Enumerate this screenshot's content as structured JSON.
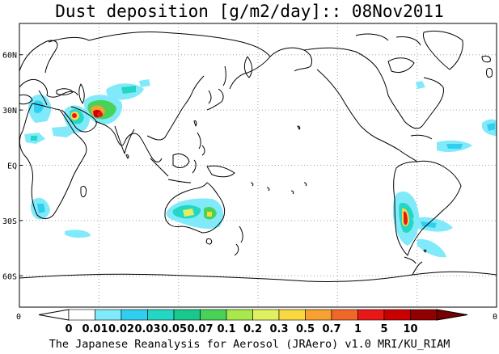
{
  "title": "Dust deposition [g/m2/day]:: 08Nov2011",
  "footer": "The Japanese Reanalysis for Aerosol (JRAero) v1.0 MRI/KU_RIAM",
  "lat_labels": [
    "60N",
    "30N",
    "EQ",
    "30S",
    "60S"
  ],
  "lat_values": [
    60,
    30,
    0,
    -30,
    -60
  ],
  "lon_range": [
    0,
    360
  ],
  "lat_range": [
    -90,
    90
  ],
  "corner_labels": {
    "left": "0",
    "right": "0"
  },
  "colorbar": {
    "labels": [
      "0",
      "0.01",
      "0.02",
      "0.03",
      "0.05",
      "0.07",
      "0.1",
      "0.2",
      "0.3",
      "0.5",
      "0.7",
      "1",
      "5",
      "10"
    ],
    "colors": [
      "#ffffff",
      "#80eafa",
      "#30cff0",
      "#24d7c4",
      "#18c88c",
      "#48d258",
      "#a8e84a",
      "#e0f060",
      "#f8d840",
      "#f8a030",
      "#f06828",
      "#e81818",
      "#c80000",
      "#900000"
    ],
    "arrow_left_color": "#ffffff",
    "arrow_right_color": "#7a0000"
  },
  "colors": {
    "coast": "#000000",
    "grid": "#a0a0a0",
    "frame": "#000000"
  },
  "gridlines": "dotted"
}
